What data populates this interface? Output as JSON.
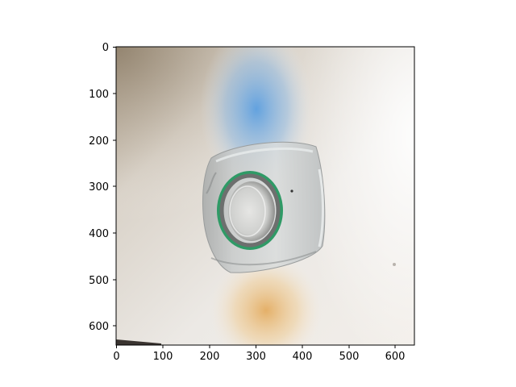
{
  "figure": {
    "image_subject": "transparent plastic bottle viewed from the bottom with a green ring around the opening on a light background",
    "axes": {
      "x_range": [
        0,
        640
      ],
      "y_range": [
        640,
        0
      ],
      "y_inverted": true,
      "x_ticks": [
        0,
        100,
        200,
        300,
        400,
        500,
        600
      ],
      "y_ticks": [
        0,
        100,
        200,
        300,
        400,
        500,
        600
      ],
      "x_tick_labels": [
        "0",
        "100",
        "200",
        "300",
        "400",
        "500",
        "600"
      ],
      "y_tick_labels": [
        "0",
        "100",
        "200",
        "300",
        "400",
        "500",
        "600"
      ],
      "grid": false
    },
    "colors": {
      "ring_green": "#2f9a66",
      "background_light": "#ede8e1",
      "blue_glow": "#7aaedc",
      "orange_glow": "#e7b469"
    }
  }
}
